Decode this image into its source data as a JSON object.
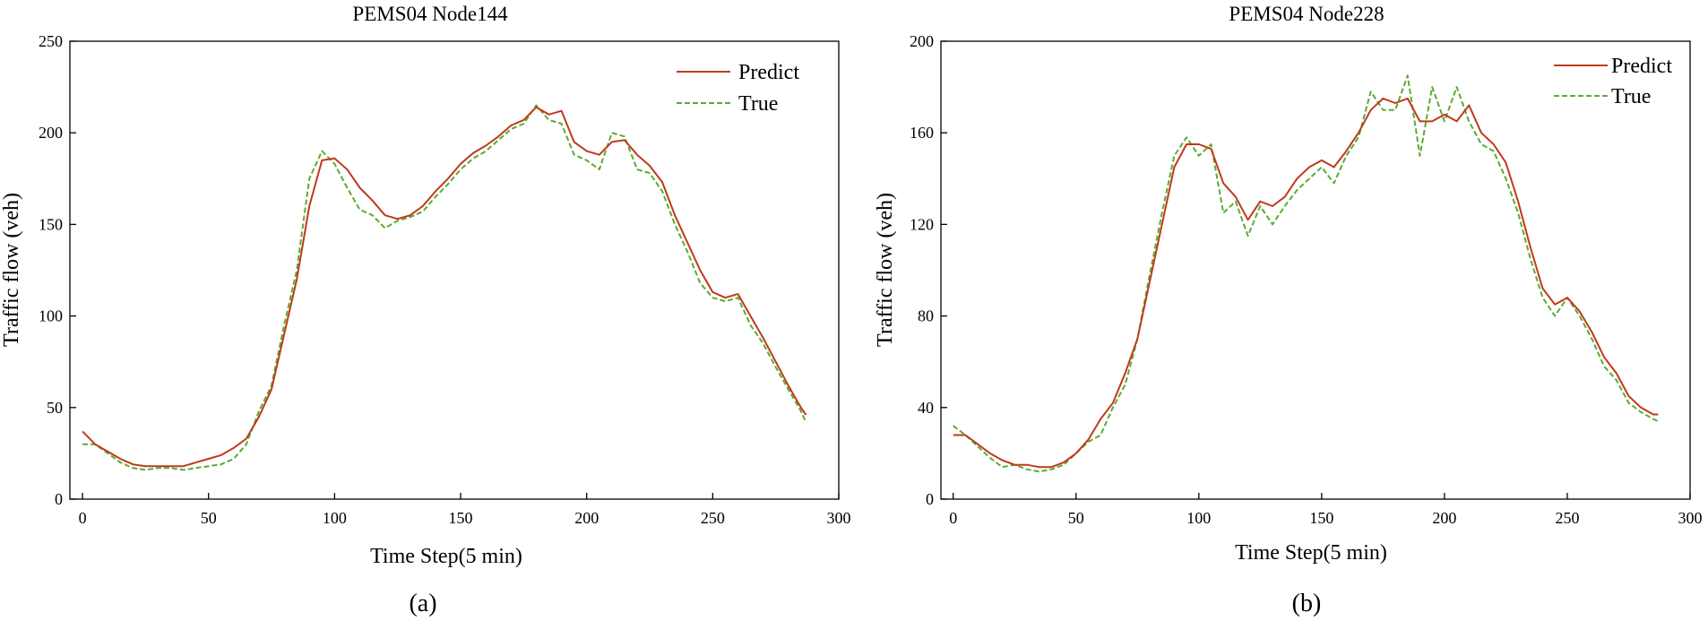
{
  "chart_data": [
    {
      "type": "line",
      "panel": "(a)",
      "title": "PEMS04 Node144",
      "xlabel": "Time Step(5 min)",
      "ylabel": "Traffic flow (veh)",
      "xlim": [
        -5,
        300
      ],
      "ylim": [
        0,
        250
      ],
      "xticks": [
        0,
        50,
        100,
        150,
        200,
        250,
        300
      ],
      "yticks": [
        0,
        50,
        100,
        150,
        200,
        250
      ],
      "legend_position": "top-right",
      "series": [
        {
          "name": "Predict",
          "color": "#c0391b",
          "style": "solid",
          "x": [
            0,
            5,
            10,
            15,
            20,
            25,
            30,
            35,
            40,
            45,
            50,
            55,
            60,
            65,
            70,
            75,
            80,
            85,
            90,
            95,
            100,
            105,
            110,
            115,
            120,
            125,
            130,
            135,
            140,
            145,
            150,
            155,
            160,
            165,
            170,
            175,
            180,
            185,
            190,
            195,
            200,
            205,
            210,
            215,
            220,
            225,
            230,
            235,
            240,
            245,
            250,
            255,
            260,
            265,
            270,
            275,
            280,
            285,
            287
          ],
          "values": [
            37,
            30,
            26,
            22,
            19,
            18,
            18,
            18,
            18,
            20,
            22,
            24,
            28,
            33,
            45,
            60,
            90,
            120,
            160,
            185,
            186,
            180,
            170,
            163,
            155,
            153,
            155,
            160,
            168,
            175,
            183,
            189,
            193,
            198,
            204,
            207,
            214,
            210,
            212,
            195,
            190,
            188,
            195,
            196,
            188,
            182,
            173,
            155,
            140,
            125,
            113,
            110,
            112,
            100,
            88,
            75,
            62,
            50,
            46
          ]
        },
        {
          "name": "True",
          "color": "#5aab32",
          "style": "dashed",
          "x": [
            0,
            5,
            10,
            15,
            20,
            25,
            30,
            35,
            40,
            45,
            50,
            55,
            60,
            65,
            70,
            75,
            80,
            85,
            90,
            95,
            100,
            105,
            110,
            115,
            120,
            125,
            130,
            135,
            140,
            145,
            150,
            155,
            160,
            165,
            170,
            175,
            180,
            185,
            190,
            195,
            200,
            205,
            210,
            215,
            220,
            225,
            230,
            235,
            240,
            245,
            250,
            255,
            260,
            265,
            270,
            275,
            280,
            285,
            287
          ],
          "values": [
            30,
            30,
            25,
            20,
            17,
            16,
            17,
            17,
            16,
            17,
            18,
            19,
            22,
            30,
            48,
            62,
            95,
            125,
            175,
            190,
            183,
            170,
            158,
            155,
            148,
            152,
            154,
            157,
            165,
            172,
            180,
            186,
            190,
            196,
            202,
            205,
            215,
            207,
            205,
            188,
            185,
            180,
            200,
            198,
            180,
            178,
            168,
            150,
            135,
            118,
            110,
            108,
            110,
            95,
            85,
            72,
            60,
            48,
            42
          ]
        }
      ]
    },
    {
      "type": "line",
      "panel": "(b)",
      "title": "PEMS04 Node228",
      "xlabel": "Time Step(5 min)",
      "ylabel": "Traffic flow (veh)",
      "xlim": [
        -5,
        300
      ],
      "ylim": [
        0,
        200
      ],
      "xticks": [
        0,
        50,
        100,
        150,
        200,
        250,
        300
      ],
      "yticks": [
        0,
        40,
        80,
        120,
        160,
        200
      ],
      "legend_position": "top-right",
      "series": [
        {
          "name": "Predict",
          "color": "#c0391b",
          "style": "solid",
          "x": [
            0,
            5,
            10,
            15,
            20,
            25,
            30,
            35,
            40,
            45,
            50,
            55,
            60,
            65,
            70,
            75,
            80,
            85,
            90,
            95,
            100,
            105,
            110,
            115,
            120,
            125,
            130,
            135,
            140,
            145,
            150,
            155,
            160,
            165,
            170,
            175,
            180,
            185,
            190,
            195,
            200,
            205,
            210,
            215,
            220,
            225,
            230,
            235,
            240,
            245,
            250,
            255,
            260,
            265,
            270,
            275,
            280,
            285,
            287
          ],
          "values": [
            28,
            28,
            24,
            20,
            17,
            15,
            15,
            14,
            14,
            16,
            20,
            26,
            35,
            42,
            55,
            70,
            95,
            120,
            145,
            155,
            155,
            153,
            138,
            132,
            122,
            130,
            128,
            132,
            140,
            145,
            148,
            145,
            152,
            160,
            170,
            175,
            173,
            175,
            165,
            165,
            168,
            165,
            172,
            160,
            155,
            147,
            130,
            110,
            92,
            85,
            88,
            82,
            73,
            62,
            55,
            45,
            40,
            37,
            37
          ]
        },
        {
          "name": "True",
          "color": "#5aab32",
          "style": "dashed",
          "x": [
            0,
            5,
            10,
            15,
            20,
            25,
            30,
            35,
            40,
            45,
            50,
            55,
            60,
            65,
            70,
            75,
            80,
            85,
            90,
            95,
            100,
            105,
            110,
            115,
            120,
            125,
            130,
            135,
            140,
            145,
            150,
            155,
            160,
            165,
            170,
            175,
            180,
            185,
            190,
            195,
            200,
            205,
            210,
            215,
            220,
            225,
            230,
            235,
            240,
            245,
            250,
            255,
            260,
            265,
            270,
            275,
            280,
            285,
            287
          ],
          "values": [
            32,
            28,
            23,
            18,
            14,
            15,
            13,
            12,
            13,
            15,
            20,
            25,
            28,
            40,
            50,
            70,
            98,
            125,
            150,
            158,
            150,
            155,
            125,
            130,
            115,
            128,
            120,
            128,
            135,
            140,
            145,
            138,
            150,
            158,
            178,
            170,
            170,
            185,
            150,
            180,
            165,
            180,
            165,
            155,
            152,
            140,
            125,
            105,
            88,
            80,
            88,
            80,
            70,
            58,
            52,
            42,
            38,
            35,
            34
          ]
        }
      ]
    }
  ]
}
